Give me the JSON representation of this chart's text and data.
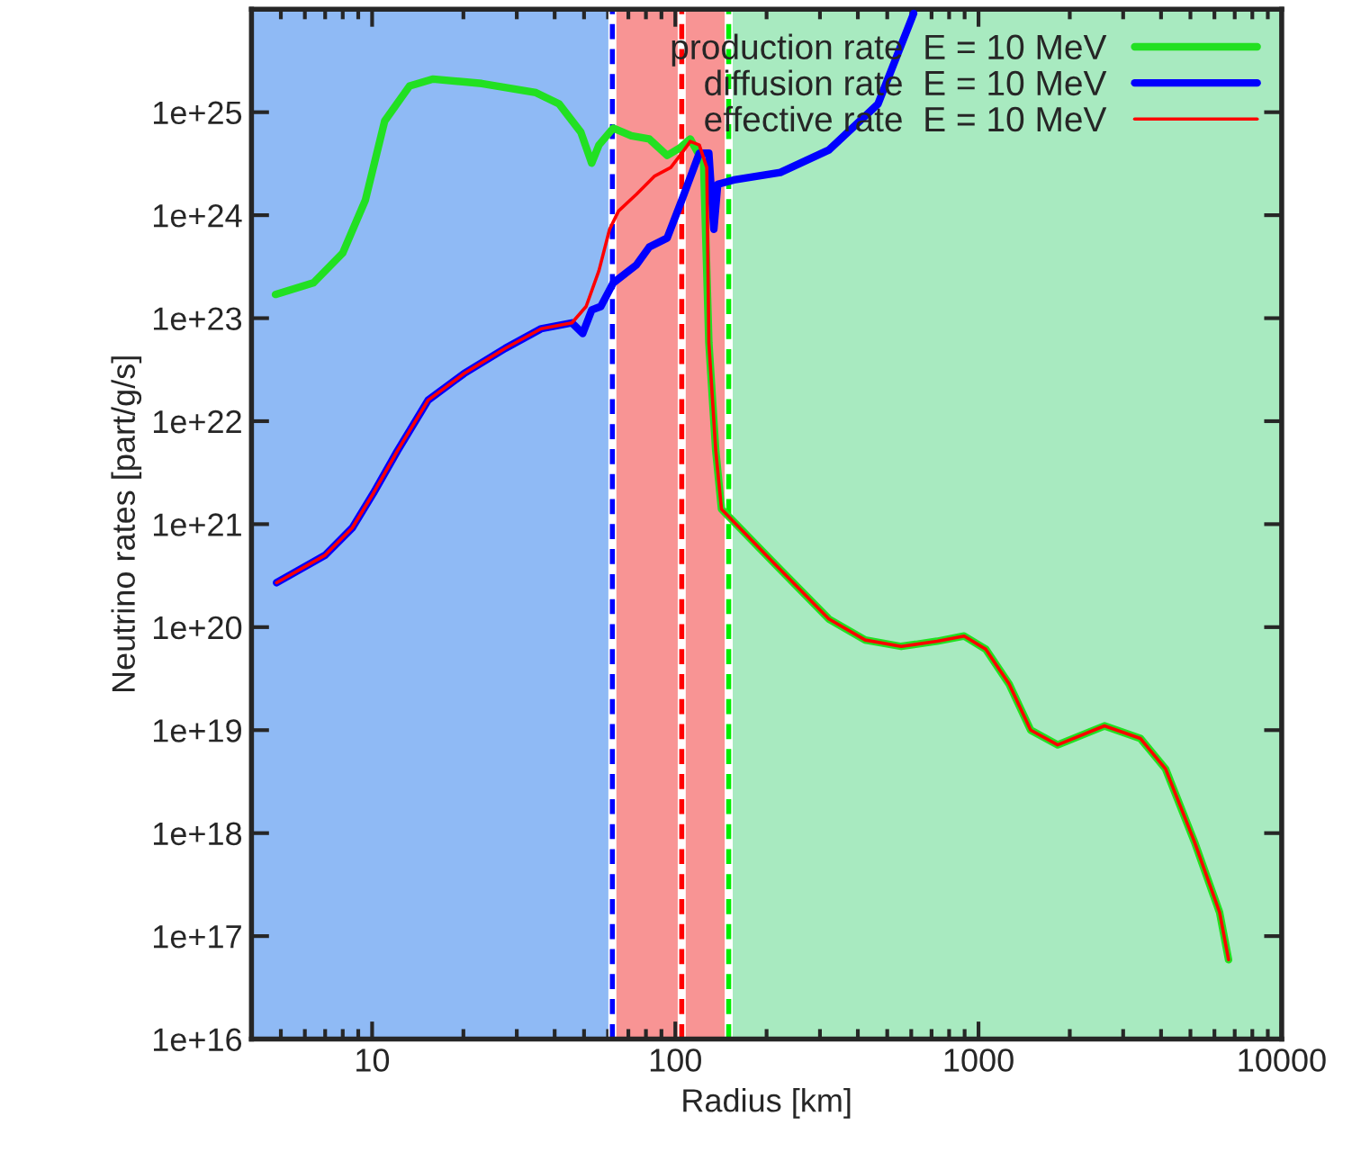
{
  "chart_data": {
    "type": "line",
    "xlabel": "Radius [km]",
    "ylabel": "Neutrino rates [part/g/s]",
    "log": "xy",
    "xlim": [
      4,
      10000
    ],
    "ylim": [
      1e+16,
      1e+26
    ],
    "xticks": [
      10,
      100,
      1000,
      10000
    ],
    "yticks": [
      {
        "value": 1e+16,
        "label": "1e+16"
      },
      {
        "value": 1e+17,
        "label": "1e+17"
      },
      {
        "value": 1e+18,
        "label": "1e+18"
      },
      {
        "value": 1e+19,
        "label": "1e+19"
      },
      {
        "value": 1e+20,
        "label": "1e+20"
      },
      {
        "value": 1e+21,
        "label": "1e+21"
      },
      {
        "value": 1e+22,
        "label": "1e+22"
      },
      {
        "value": 1e+23,
        "label": "1e+23"
      },
      {
        "value": 1e+24,
        "label": "1e+24"
      },
      {
        "value": 1e+25,
        "label": "1e+25"
      }
    ],
    "grid": false,
    "legend": "top right",
    "line_style": "solid",
    "marker": "none",
    "bands": [
      {
        "axis": "x",
        "from": 4,
        "to": 62,
        "color": "#8fbaf5"
      },
      {
        "axis": "x",
        "from": 62,
        "to": 149,
        "color": "#f89494"
      },
      {
        "axis": "x",
        "from": 149,
        "to": 10000,
        "color": "#a8eac0"
      }
    ],
    "ref_lines": [
      {
        "axis": "x",
        "value": 62,
        "color": "#0000ff",
        "line_style": "dashed"
      },
      {
        "axis": "x",
        "value": 105,
        "color": "#ff0000",
        "line_style": "dashed"
      },
      {
        "axis": "x",
        "value": 150,
        "color": "#00ee00",
        "line_style": "dashed"
      }
    ],
    "series": [
      {
        "name": "production rate  E = 10 MeV",
        "color": "#22e022",
        "x": [
          4.8,
          6.4,
          8.0,
          9.5,
          11,
          13.3,
          15.9,
          23,
          34.7,
          41.4,
          48.8,
          53,
          56,
          62.4,
          71.6,
          82,
          94,
          103.5,
          112,
          124,
          129,
          136,
          142,
          213,
          321,
          423,
          556,
          730,
          897,
          1057,
          1262,
          1486,
          1824,
          2602,
          3420,
          4140,
          5150,
          6240,
          6680
        ],
        "values": [
          1.7e+23,
          2.2e+23,
          4.3e+23,
          1.4e+24,
          8.2e+24,
          1.8e+25,
          2.1e+25,
          1.9e+25,
          1.55e+25,
          1.2e+25,
          6.4e+24,
          3.2e+24,
          4.8e+24,
          7e+24,
          5.9e+24,
          5.5e+24,
          3.8e+24,
          4.5e+24,
          5.5e+24,
          3.2e+24,
          5.8e+22,
          5.1e+21,
          1.4e+21,
          4.1e+20,
          1.2e+20,
          7.5e+19,
          6.5e+19,
          7.3e+19,
          8.2e+19,
          6.1e+19,
          2.8e+19,
          1e+19,
          7.2e+18,
          1.1e+19,
          8.3e+18,
          4.2e+18,
          8.3e+17,
          1.7e+17,
          5.9e+16
        ]
      },
      {
        "name": "diffusion rate  E = 10 MeV",
        "color": "#0000ff",
        "x": [
          4.84,
          7.0,
          8.6,
          10.1,
          12.1,
          15.3,
          20.1,
          27.5,
          36.1,
          45.6,
          49.5,
          53,
          56.8,
          62.4,
          74.5,
          82,
          94,
          105,
          120,
          129,
          134,
          138,
          156,
          222,
          321,
          466,
          611
        ],
        "values": [
          2.7e+20,
          5e+20,
          9.2e+20,
          2e+21,
          5.1e+21,
          1.6e+22,
          2.9e+22,
          5.1e+22,
          7.9e+22,
          9e+22,
          7.1e+22,
          1.2e+23,
          1.3e+23,
          2.2e+23,
          3.3e+23,
          4.9e+23,
          6e+23,
          1.4e+24,
          4e+24,
          4e+24,
          7.3e+23,
          2e+24,
          2.2e+24,
          2.6e+24,
          4.3e+24,
          1.2e+25,
          9.1e+25
        ]
      },
      {
        "name": "effective rate  E = 10 MeV",
        "color": "#ff0000",
        "x": [
          4.84,
          7.0,
          8.6,
          10.1,
          12.1,
          15.3,
          20.1,
          27.5,
          36.1,
          45.6,
          50.8,
          56,
          60.7,
          65,
          74.5,
          85.5,
          96.6,
          105,
          112,
          120,
          127,
          129,
          136,
          142,
          213,
          321,
          423,
          556,
          730,
          897,
          1057,
          1262,
          1486,
          1824,
          2602,
          3420,
          4140,
          5150,
          6240,
          6680
        ],
        "values": [
          2.7e+20,
          5e+20,
          9.2e+20,
          2e+21,
          5.1e+21,
          1.6e+22,
          2.9e+22,
          5.1e+22,
          7.9e+22,
          9e+22,
          1.3e+23,
          2.9e+23,
          7.3e+23,
          1.1e+24,
          1.6e+24,
          2.4e+24,
          2.9e+24,
          4e+24,
          5.2e+24,
          4.8e+24,
          2.9e+24,
          5.8e+22,
          5.1e+21,
          1.4e+21,
          4.1e+20,
          1.2e+20,
          7.5e+19,
          6.5e+19,
          7.3e+19,
          8.2e+19,
          6.1e+19,
          2.8e+19,
          1e+19,
          7.2e+18,
          1.1e+19,
          8.3e+18,
          4.2e+18,
          8.3e+17,
          1.7e+17,
          5.9e+16
        ]
      }
    ]
  }
}
